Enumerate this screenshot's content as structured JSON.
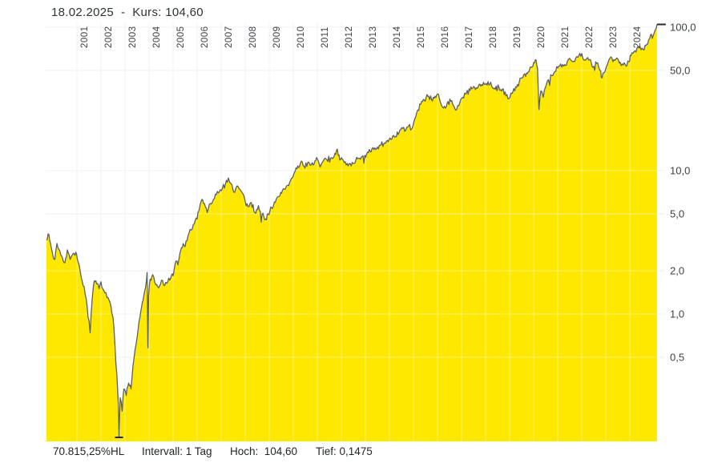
{
  "header": {
    "title": "18.02.2025  -  Kurs: 104,60"
  },
  "footer": {
    "range_percent": "70.815,25%HL",
    "interval": "Intervall: 1 Tag",
    "high": "Hoch:  104,60",
    "low": "Tief: 0,1475"
  },
  "colors": {
    "background": "#ffffff",
    "area_fill": "#ffe800",
    "price_line": "#5b6067",
    "grid": "#e6e6e6",
    "grid_over_fill": "rgba(255,255,255,0.42)",
    "axis_text": "#3d4248",
    "title_text": "#2e3339",
    "footer_text": "#1f2328",
    "marker": "#26292d"
  },
  "chart_data": {
    "type": "area",
    "title": "18.02.2025 - Kurs: 104,60",
    "interval": "1 Tag",
    "current": 104.6,
    "high": 104.6,
    "low": 0.1475,
    "range_percent_high_low": "70.815,25%HL",
    "y_scale": "log",
    "grid": true,
    "legend": false,
    "x_range": [
      1999.73,
      2025.13
    ],
    "y_range": [
      0.1475,
      104.6
    ],
    "x_ticks": [
      2001,
      2002,
      2003,
      2004,
      2005,
      2006,
      2007,
      2008,
      2009,
      2010,
      2011,
      2012,
      2013,
      2014,
      2015,
      2016,
      2017,
      2018,
      2019,
      2020,
      2021,
      2022,
      2023,
      2024
    ],
    "y_ticks": [
      {
        "value": 100,
        "label": "100,0"
      },
      {
        "value": 50,
        "label": "50,0"
      },
      {
        "value": 10,
        "label": "10,0"
      },
      {
        "value": 5,
        "label": "5,0"
      },
      {
        "value": 2,
        "label": "2,0"
      },
      {
        "value": 1,
        "label": "1,0"
      },
      {
        "value": 0.5,
        "label": "0,5"
      }
    ],
    "series": [
      {
        "name": "Kurs",
        "points": [
          [
            1999.73,
            3.3
          ],
          [
            1999.8,
            3.62
          ],
          [
            1999.9,
            3.1
          ],
          [
            2000.0,
            2.55
          ],
          [
            2000.08,
            2.4
          ],
          [
            2000.17,
            3.1
          ],
          [
            2000.28,
            2.78
          ],
          [
            2000.38,
            2.52
          ],
          [
            2000.5,
            2.28
          ],
          [
            2000.6,
            2.8
          ],
          [
            2000.72,
            2.4
          ],
          [
            2000.85,
            2.65
          ],
          [
            2000.95,
            2.7
          ],
          [
            2001.05,
            2.3
          ],
          [
            2001.18,
            1.8
          ],
          [
            2001.3,
            1.55
          ],
          [
            2001.42,
            1.15
          ],
          [
            2001.55,
            0.74
          ],
          [
            2001.63,
            1.25
          ],
          [
            2001.72,
            1.7
          ],
          [
            2001.82,
            1.62
          ],
          [
            2001.92,
            1.5
          ],
          [
            2002.0,
            1.68
          ],
          [
            2002.12,
            1.45
          ],
          [
            2002.25,
            1.3
          ],
          [
            2002.38,
            1.2
          ],
          [
            2002.5,
            0.95
          ],
          [
            2002.58,
            0.62
          ],
          [
            2002.66,
            0.38
          ],
          [
            2002.72,
            0.24
          ],
          [
            2002.75,
            0.1475
          ],
          [
            2002.8,
            0.26
          ],
          [
            2002.88,
            0.21
          ],
          [
            2002.95,
            0.3
          ],
          [
            2003.05,
            0.27
          ],
          [
            2003.15,
            0.33
          ],
          [
            2003.25,
            0.3
          ],
          [
            2003.38,
            0.5
          ],
          [
            2003.5,
            0.68
          ],
          [
            2003.62,
            0.95
          ],
          [
            2003.72,
            1.2
          ],
          [
            2003.82,
            1.45
          ],
          [
            2003.92,
            1.95
          ],
          [
            2003.955,
            0.58
          ],
          [
            2003.98,
            1.35
          ],
          [
            2004.05,
            1.75
          ],
          [
            2004.15,
            1.88
          ],
          [
            2004.28,
            1.6
          ],
          [
            2004.4,
            1.52
          ],
          [
            2004.52,
            1.72
          ],
          [
            2004.65,
            1.58
          ],
          [
            2004.78,
            1.68
          ],
          [
            2004.9,
            1.78
          ],
          [
            2005.0,
            1.85
          ],
          [
            2005.1,
            2.3
          ],
          [
            2005.2,
            2.2
          ],
          [
            2005.32,
            2.8
          ],
          [
            2005.42,
            3.1
          ],
          [
            2005.5,
            2.95
          ],
          [
            2005.62,
            3.5
          ],
          [
            2005.75,
            3.85
          ],
          [
            2005.88,
            4.25
          ],
          [
            2006.0,
            4.6
          ],
          [
            2006.1,
            5.5
          ],
          [
            2006.2,
            6.3
          ],
          [
            2006.3,
            5.9
          ],
          [
            2006.42,
            5.1
          ],
          [
            2006.55,
            5.9
          ],
          [
            2006.68,
            6.3
          ],
          [
            2006.8,
            6.8
          ],
          [
            2006.92,
            7.1
          ],
          [
            2007.05,
            7.5
          ],
          [
            2007.18,
            8.1
          ],
          [
            2007.3,
            8.9
          ],
          [
            2007.42,
            8.1
          ],
          [
            2007.52,
            7.1
          ],
          [
            2007.65,
            7.8
          ],
          [
            2007.78,
            7.4
          ],
          [
            2007.9,
            6.9
          ],
          [
            2008.0,
            6.1
          ],
          [
            2008.12,
            5.6
          ],
          [
            2008.25,
            6.0
          ],
          [
            2008.4,
            5.1
          ],
          [
            2008.55,
            5.7
          ],
          [
            2008.7,
            4.95
          ],
          [
            2008.85,
            4.6
          ],
          [
            2008.95,
            5.0
          ],
          [
            2009.1,
            5.5
          ],
          [
            2009.25,
            6.0
          ],
          [
            2009.4,
            6.6
          ],
          [
            2009.55,
            7.3
          ],
          [
            2009.7,
            7.7
          ],
          [
            2009.85,
            8.3
          ],
          [
            2010.0,
            9.2
          ],
          [
            2010.15,
            10.3
          ],
          [
            2010.3,
            11.3
          ],
          [
            2010.45,
            10.7
          ],
          [
            2010.6,
            11.4
          ],
          [
            2010.75,
            11.0
          ],
          [
            2010.9,
            11.7
          ],
          [
            2011.0,
            12.1
          ],
          [
            2011.12,
            10.6
          ],
          [
            2011.25,
            11.7
          ],
          [
            2011.4,
            11.9
          ],
          [
            2011.55,
            12.2
          ],
          [
            2011.7,
            12.6
          ],
          [
            2011.8,
            13.9
          ],
          [
            2011.9,
            12.9
          ],
          [
            2012.0,
            12.3
          ],
          [
            2012.12,
            11.4
          ],
          [
            2012.28,
            10.8
          ],
          [
            2012.45,
            11.4
          ],
          [
            2012.6,
            11.8
          ],
          [
            2012.75,
            12.2
          ],
          [
            2012.9,
            12.7
          ],
          [
            2013.05,
            13.0
          ],
          [
            2013.2,
            13.6
          ],
          [
            2013.35,
            14.0
          ],
          [
            2013.5,
            14.6
          ],
          [
            2013.65,
            15.2
          ],
          [
            2013.8,
            15.6
          ],
          [
            2013.95,
            15.9
          ],
          [
            2014.1,
            16.6
          ],
          [
            2014.25,
            17.3
          ],
          [
            2014.4,
            18.4
          ],
          [
            2014.55,
            19.7
          ],
          [
            2014.68,
            19.2
          ],
          [
            2014.8,
            20.5
          ],
          [
            2014.92,
            19.5
          ],
          [
            2015.05,
            22.8
          ],
          [
            2015.18,
            26.5
          ],
          [
            2015.3,
            29.0
          ],
          [
            2015.45,
            31.0
          ],
          [
            2015.6,
            33.0
          ],
          [
            2015.75,
            31.5
          ],
          [
            2015.9,
            33.0
          ],
          [
            2016.0,
            34.2
          ],
          [
            2016.12,
            30.0
          ],
          [
            2016.25,
            27.3
          ],
          [
            2016.4,
            29.5
          ],
          [
            2016.55,
            30.5
          ],
          [
            2016.68,
            28.2
          ],
          [
            2016.8,
            26.8
          ],
          [
            2016.92,
            29.5
          ],
          [
            2017.05,
            32.5
          ],
          [
            2017.2,
            34.8
          ],
          [
            2017.35,
            36.2
          ],
          [
            2017.5,
            38.6
          ],
          [
            2017.65,
            37.5
          ],
          [
            2017.8,
            38.8
          ],
          [
            2017.95,
            40.0
          ],
          [
            2018.1,
            41.8
          ],
          [
            2018.25,
            39.0
          ],
          [
            2018.4,
            36.8
          ],
          [
            2018.55,
            38.4
          ],
          [
            2018.7,
            37.0
          ],
          [
            2018.85,
            33.2
          ],
          [
            2018.97,
            31.8
          ],
          [
            2019.1,
            34.5
          ],
          [
            2019.25,
            38.5
          ],
          [
            2019.4,
            41.5
          ],
          [
            2019.55,
            44.5
          ],
          [
            2019.7,
            48.0
          ],
          [
            2019.85,
            52.5
          ],
          [
            2020.0,
            56.8
          ],
          [
            2020.1,
            59.2
          ],
          [
            2020.16,
            52.0
          ],
          [
            2020.22,
            26.7
          ],
          [
            2020.3,
            36.0
          ],
          [
            2020.4,
            32.5
          ],
          [
            2020.5,
            38.5
          ],
          [
            2020.62,
            43.0
          ],
          [
            2020.75,
            46.0
          ],
          [
            2020.88,
            49.0
          ],
          [
            2021.0,
            52.0
          ],
          [
            2021.12,
            55.5
          ],
          [
            2021.25,
            53.5
          ],
          [
            2021.4,
            58.0
          ],
          [
            2021.5,
            60.7
          ],
          [
            2021.62,
            57.5
          ],
          [
            2021.75,
            61.0
          ],
          [
            2021.88,
            63.5
          ],
          [
            2022.0,
            65.5
          ],
          [
            2022.12,
            59.0
          ],
          [
            2022.25,
            61.5
          ],
          [
            2022.4,
            56.0
          ],
          [
            2022.5,
            53.5
          ],
          [
            2022.62,
            56.0
          ],
          [
            2022.75,
            50.0
          ],
          [
            2022.85,
            44.5
          ],
          [
            2022.95,
            48.5
          ],
          [
            2023.05,
            54.0
          ],
          [
            2023.17,
            60.7
          ],
          [
            2023.3,
            57.5
          ],
          [
            2023.45,
            61.0
          ],
          [
            2023.6,
            57.0
          ],
          [
            2023.72,
            54.5
          ],
          [
            2023.85,
            53.4
          ],
          [
            2023.95,
            57.5
          ],
          [
            2024.05,
            63.5
          ],
          [
            2024.17,
            67.5
          ],
          [
            2024.3,
            71.8
          ],
          [
            2024.42,
            73.6
          ],
          [
            2024.55,
            70.0
          ],
          [
            2024.67,
            74.5
          ],
          [
            2024.78,
            81.5
          ],
          [
            2024.87,
            89.0
          ],
          [
            2024.93,
            83.5
          ],
          [
            2025.0,
            90.0
          ],
          [
            2025.06,
            96.0
          ],
          [
            2025.13,
            104.6
          ]
        ]
      }
    ]
  }
}
